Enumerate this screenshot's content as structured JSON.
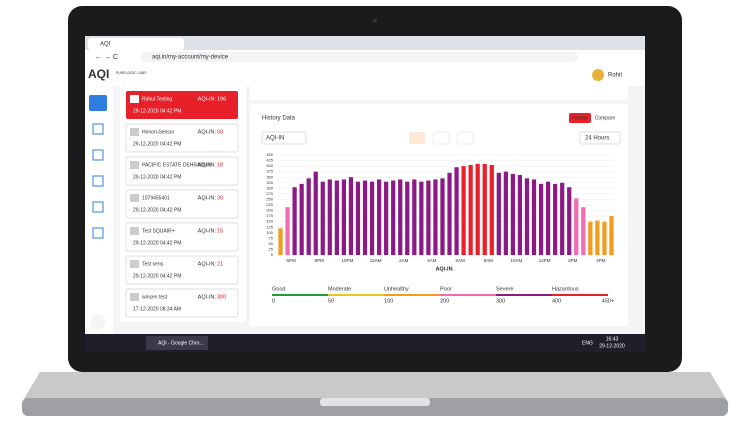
{
  "browser": {
    "tab_title": "AQI",
    "url": "aqi.in/my-account/my-device"
  },
  "header": {
    "logo": "AQI",
    "partner": "PURELOGIC LABS",
    "user": "Rohit"
  },
  "devices": [
    {
      "name": "Rahul Testing",
      "aqi_label": "AQI-IN:",
      "aqi": 196,
      "time": "29-12-2020 04:42 PM"
    },
    {
      "name": "Honon-Sensor",
      "aqi_label": "AQI-IN:",
      "aqi": 60,
      "time": "29-12-2020 04:42 PM"
    },
    {
      "name": "PACIFIC ESTATE DEHRADUN",
      "aqi_label": "AQI-IN:",
      "aqi": 18,
      "time": "29-12-2020 04:42 PM"
    },
    {
      "name": "1079455401",
      "aqi_label": "AQI-IN:",
      "aqi": 30,
      "time": "29-12-2020 04:42 PM"
    },
    {
      "name": "Test SQUAIR+",
      "aqi_label": "AQI-IN:",
      "aqi": 15,
      "time": "29-12-2020 04:42 PM"
    },
    {
      "name": "Test sens",
      "aqi_label": "AQI-IN:",
      "aqi": 21,
      "time": "29-12-2020 04:42 PM"
    },
    {
      "name": "winsen test",
      "aqi_label": "AQI-IN:",
      "aqi": 300,
      "time": "17-12-2020 08:34 AM"
    }
  ],
  "history": {
    "title": "History Data",
    "tabs": [
      "History",
      "Compare"
    ],
    "metric": "AQI-IN",
    "range": "24 Hours",
    "x_label": "AQI-IN",
    "xlabels": [
      "6PM",
      "8PM",
      "10PM",
      "12AM",
      "2AM",
      "4AM",
      "6AM",
      "8AM",
      "10AM",
      "12PM",
      "2PM",
      "4PM"
    ],
    "values": [
      120,
      215,
      305,
      320,
      345,
      375,
      330,
      340,
      335,
      340,
      350,
      330,
      335,
      330,
      340,
      330,
      335,
      340,
      330,
      340,
      330,
      335,
      340,
      345,
      370,
      395,
      400,
      405,
      410,
      410,
      405,
      370,
      375,
      365,
      360,
      345,
      340,
      320,
      330,
      320,
      325,
      305,
      255,
      215,
      150,
      155,
      150,
      175
    ],
    "ylim": [
      0,
      450
    ],
    "yticks": [
      0,
      25,
      50,
      75,
      100,
      125,
      150,
      175,
      200,
      225,
      250,
      275,
      300,
      325,
      350,
      375,
      400,
      425,
      450
    ],
    "legend": [
      {
        "name": "Good",
        "value": 0,
        "color": "#1e9e3a"
      },
      {
        "name": "Moderate",
        "value": 50,
        "color": "#e8c620"
      },
      {
        "name": "Unhealthy",
        "value": 100,
        "color": "#f29b1c"
      },
      {
        "name": "Poor",
        "value": 200,
        "color": "#f06bb0"
      },
      {
        "name": "Severe",
        "value": 300,
        "color": "#8b1a86"
      },
      {
        "name": "Hazardous",
        "value": 400,
        "color": "#e8202a"
      }
    ],
    "legend_end": "450+"
  },
  "taskbar": {
    "window": "AQI - Google Chro...",
    "lang": "ENG",
    "time": "16:43",
    "date": "29-12-2020"
  }
}
